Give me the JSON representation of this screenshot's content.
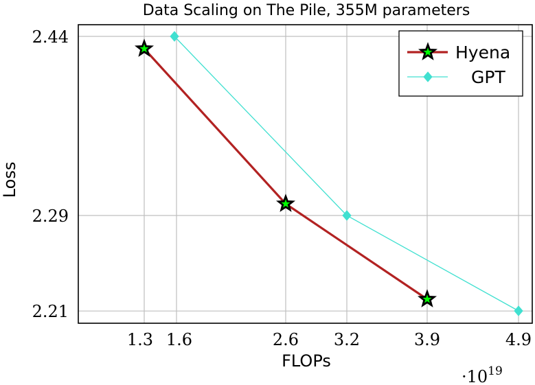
{
  "chart_data": {
    "type": "line",
    "title": "Data Scaling on The Pile, 355M parameters",
    "xlabel": "FLOPs",
    "ylabel": "Loss",
    "x_multiplier": "·10^19",
    "x_multiplier_base": "·10",
    "x_multiplier_exp": "19",
    "x_ticks": [
      "1.3",
      "1.6",
      "2.6",
      "3.2",
      "3.9",
      "4.9"
    ],
    "y_ticks": [
      "2.44",
      "2.29",
      "2.21"
    ],
    "grid": true,
    "legend_position": "top-right",
    "series": [
      {
        "name": "Hyena",
        "color": "#b22222",
        "marker": "star",
        "marker_fill": "#00ff00",
        "x": [
          1.3,
          2.6,
          3.9
        ],
        "y": [
          2.43,
          2.29,
          2.22
        ]
      },
      {
        "name": "GPT",
        "color": "#40e0d0",
        "marker": "diamond",
        "x": [
          1.6,
          3.2,
          4.9
        ],
        "y": [
          2.44,
          2.29,
          2.21
        ]
      }
    ]
  }
}
